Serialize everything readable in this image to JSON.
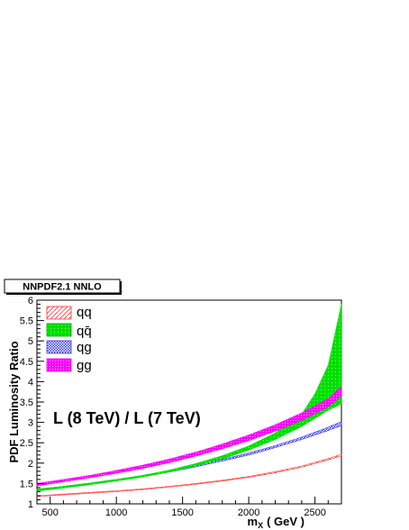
{
  "chart_data": {
    "type": "area",
    "title": "NNPDF2.1 NNLO",
    "annotation": "L (8 TeV) / L (7 TeV)",
    "xlabel": "m_X ( GeV )",
    "xlabel_main": "m",
    "xlabel_sub": "X",
    "xlabel_unit": "( GeV )",
    "ylabel": "PDF Luminosity Ratio",
    "xlim": [
      400,
      2700
    ],
    "ylim": [
      1,
      6
    ],
    "xticks": [
      500,
      1000,
      1500,
      2000,
      2500
    ],
    "yticks": [
      1,
      1.5,
      2,
      2.5,
      3,
      3.5,
      4,
      4.5,
      5,
      5.5,
      6
    ],
    "ytick_labels": [
      "1",
      "1.5",
      "2",
      "2.5",
      "3",
      "3.5",
      "4",
      "4.5",
      "5",
      "5.5",
      "6"
    ],
    "legend_position": "top-left",
    "series": [
      {
        "name": "qq",
        "color": "#ff3333",
        "x": [
          400,
          600,
          800,
          1000,
          1200,
          1400,
          1600,
          1800,
          2000,
          2200,
          2400,
          2600,
          2700
        ],
        "low": [
          1.18,
          1.22,
          1.26,
          1.3,
          1.35,
          1.41,
          1.48,
          1.56,
          1.65,
          1.76,
          1.9,
          2.08,
          2.18
        ],
        "high": [
          1.2,
          1.24,
          1.28,
          1.32,
          1.37,
          1.43,
          1.5,
          1.58,
          1.67,
          1.79,
          1.93,
          2.11,
          2.22
        ]
      },
      {
        "name": "qq̄",
        "color": "#00e000",
        "x": [
          400,
          600,
          800,
          1000,
          1200,
          1400,
          1600,
          1800,
          2000,
          2200,
          2400,
          2500,
          2600,
          2700
        ],
        "low": [
          1.31,
          1.39,
          1.47,
          1.56,
          1.66,
          1.78,
          1.93,
          2.1,
          2.32,
          2.58,
          2.9,
          3.1,
          3.3,
          3.45
        ],
        "high": [
          1.36,
          1.43,
          1.51,
          1.6,
          1.7,
          1.83,
          1.99,
          2.18,
          2.42,
          2.74,
          3.2,
          3.7,
          4.4,
          5.9
        ]
      },
      {
        "name": "qg",
        "color": "#3333ff",
        "x": [
          400,
          600,
          800,
          1000,
          1200,
          1400,
          1600,
          1800,
          2000,
          2200,
          2400,
          2600,
          2700
        ],
        "low": [
          1.33,
          1.4,
          1.48,
          1.57,
          1.67,
          1.78,
          1.91,
          2.05,
          2.2,
          2.38,
          2.58,
          2.8,
          2.92
        ],
        "high": [
          1.36,
          1.43,
          1.51,
          1.6,
          1.7,
          1.81,
          1.94,
          2.09,
          2.25,
          2.43,
          2.64,
          2.88,
          3.02
        ]
      },
      {
        "name": "gg",
        "color": "#ff00ff",
        "x": [
          400,
          600,
          800,
          1000,
          1200,
          1400,
          1600,
          1800,
          2000,
          2200,
          2400,
          2600,
          2700
        ],
        "low": [
          1.44,
          1.54,
          1.64,
          1.75,
          1.87,
          2.01,
          2.17,
          2.35,
          2.55,
          2.78,
          3.05,
          3.38,
          3.65
        ],
        "high": [
          1.5,
          1.6,
          1.7,
          1.82,
          1.95,
          2.1,
          2.27,
          2.47,
          2.69,
          2.94,
          3.23,
          3.58,
          3.88
        ]
      }
    ]
  }
}
